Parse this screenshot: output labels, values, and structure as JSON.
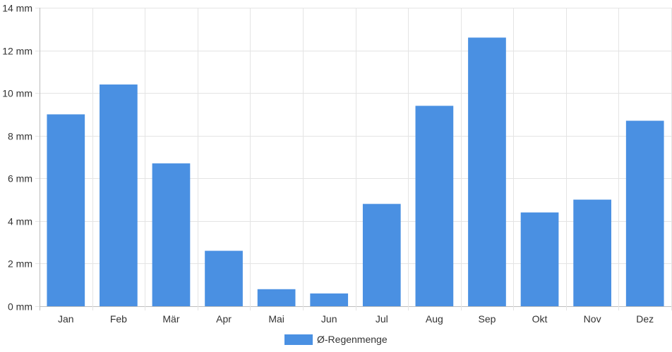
{
  "chart_data": {
    "type": "bar",
    "categories": [
      "Jan",
      "Feb",
      "Mär",
      "Apr",
      "Mai",
      "Jun",
      "Jul",
      "Aug",
      "Sep",
      "Okt",
      "Nov",
      "Dez"
    ],
    "series": [
      {
        "name": "Ø-Regenmenge",
        "color": "#4a90e2",
        "values": [
          9.0,
          10.4,
          6.7,
          2.6,
          0.8,
          0.6,
          4.8,
          9.4,
          12.6,
          4.4,
          5.0,
          8.7
        ]
      }
    ],
    "y_ticks": [
      "0 mm",
      "2 mm",
      "4 mm",
      "6 mm",
      "8 mm",
      "10 mm",
      "12 mm",
      "14 mm"
    ],
    "ylim": [
      0,
      14
    ],
    "y_unit": "mm",
    "grid": true,
    "legend_position": "bottom-center"
  }
}
